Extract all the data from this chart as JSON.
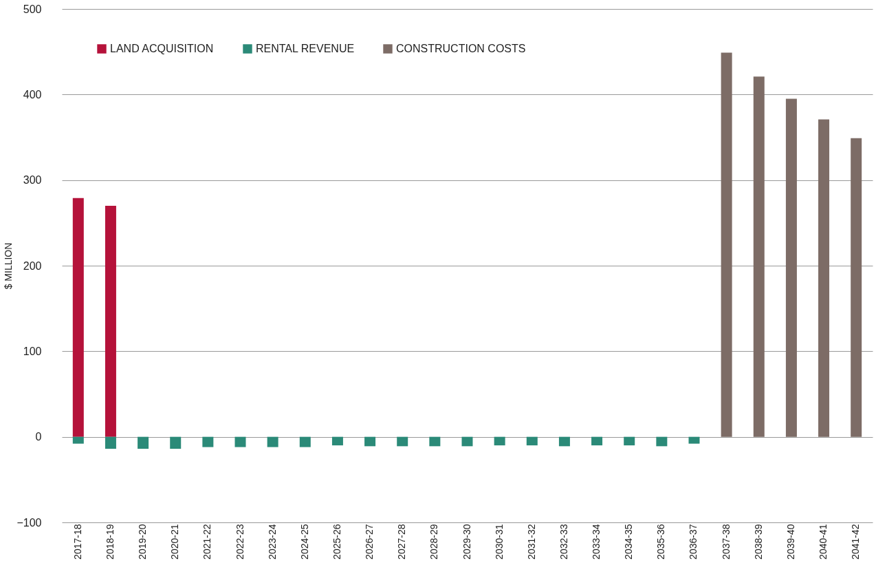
{
  "chart_data": {
    "type": "bar",
    "stacked": true,
    "ylabel": "$ MILLION",
    "categories": [
      "2017-18",
      "2018-19",
      "2019-20",
      "2020-21",
      "2021-22",
      "2022-23",
      "2023-24",
      "2024-25",
      "2025-26",
      "2026-27",
      "2027-28",
      "2028-29",
      "2029-30",
      "2030-31",
      "2031-32",
      "2032-33",
      "2033-34",
      "2034-35",
      "2035-36",
      "2036-37",
      "2037-38",
      "2038-39",
      "2039-40",
      "2040-41",
      "2041-42"
    ],
    "series": [
      {
        "name": "LAND ACQUISITION",
        "color": "#b5123a",
        "values": [
          279,
          270,
          null,
          null,
          null,
          null,
          null,
          null,
          null,
          null,
          null,
          null,
          null,
          null,
          null,
          null,
          null,
          null,
          null,
          null,
          null,
          null,
          null,
          null,
          null
        ]
      },
      {
        "name": "RENTAL REVENUE",
        "color": "#2b8a78",
        "values": [
          -8,
          -14,
          -14,
          -14,
          -12,
          -12,
          -12,
          -12,
          -10,
          -11,
          -11,
          -11,
          -11,
          -10,
          -10,
          -11,
          -10,
          -10,
          -11,
          -8,
          null,
          null,
          null,
          null,
          null
        ]
      },
      {
        "name": "CONSTRUCTION COSTS",
        "color": "#7d6c66",
        "values": [
          null,
          null,
          null,
          null,
          null,
          null,
          null,
          null,
          null,
          null,
          null,
          null,
          null,
          null,
          null,
          null,
          null,
          null,
          null,
          null,
          449,
          421,
          395,
          371,
          349
        ]
      }
    ],
    "ylim": [
      -100,
      500
    ],
    "yticks": [
      -100,
      0,
      100,
      200,
      300,
      400,
      500
    ],
    "grid": "y",
    "legend": "top left"
  }
}
